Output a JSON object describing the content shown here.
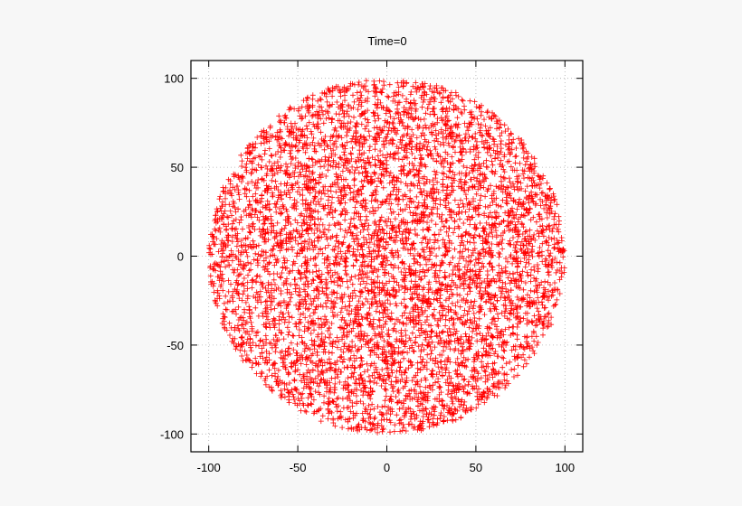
{
  "chart_data": {
    "type": "scatter",
    "title": "Time=0",
    "xlabel": "",
    "ylabel": "",
    "xlim": [
      -110,
      110
    ],
    "ylim": [
      -110,
      110
    ],
    "xticks": [
      -100,
      -50,
      0,
      50,
      100
    ],
    "yticks": [
      -100,
      -50,
      0,
      50,
      100
    ],
    "xtick_labels": [
      "-100",
      "-50",
      "0",
      "50",
      "100"
    ],
    "ytick_labels": [
      "-100",
      "-50",
      "0",
      "50",
      "100"
    ],
    "grid": true,
    "legend": "none",
    "marker": "plus",
    "series": [
      {
        "color": "#ff0000",
        "distribution": "uniform-disk",
        "center": [
          0,
          0
        ],
        "radius": 100,
        "point_count": 6000
      }
    ]
  }
}
